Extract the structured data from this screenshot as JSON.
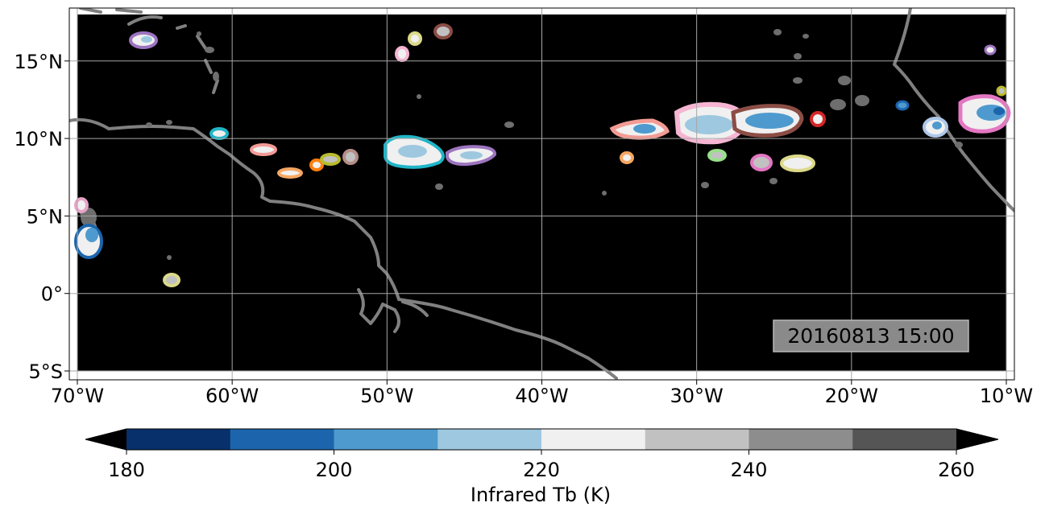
{
  "map": {
    "timestamp": "20160813 15:00",
    "extent": {
      "lon": [
        -70,
        -10
      ],
      "lat": [
        -5,
        18
      ]
    },
    "lon_ticks": [
      {
        "value": -70,
        "label": "70°W"
      },
      {
        "value": -60,
        "label": "60°W"
      },
      {
        "value": -50,
        "label": "50°W"
      },
      {
        "value": -40,
        "label": "40°W"
      },
      {
        "value": -30,
        "label": "30°W"
      },
      {
        "value": -20,
        "label": "20°W"
      },
      {
        "value": -10,
        "label": "10°W"
      }
    ],
    "lat_ticks": [
      {
        "value": 15,
        "label": "15°N"
      },
      {
        "value": 10,
        "label": "10°N"
      },
      {
        "value": 5,
        "label": "5°N"
      },
      {
        "value": 0,
        "label": "0°"
      },
      {
        "value": -5,
        "label": "5°S"
      }
    ],
    "grid": true,
    "background_color": "#000000",
    "coastline_color": "#808080"
  },
  "colorbar": {
    "label": "Infrared Tb (K)",
    "extend": "both",
    "levels": [
      180,
      190,
      200,
      210,
      220,
      230,
      240,
      250,
      260
    ],
    "tick_labels": [
      {
        "value": 180,
        "label": "180"
      },
      {
        "value": 200,
        "label": "200"
      },
      {
        "value": 220,
        "label": "220"
      },
      {
        "value": 240,
        "label": "240"
      },
      {
        "value": 260,
        "label": "260"
      }
    ],
    "colors": [
      "#08306b",
      "#1c65ad",
      "#4e9ace",
      "#9dc8df",
      "#f0f0f0",
      "#c1c1c1",
      "#8d8d8d",
      "#555555"
    ],
    "under_color": "#000000",
    "over_color": "#000000"
  }
}
